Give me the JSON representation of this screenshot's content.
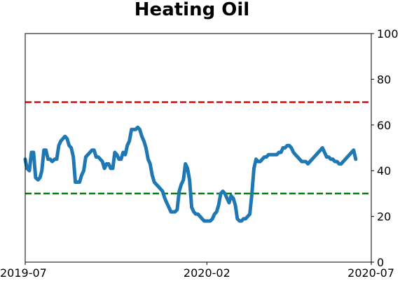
{
  "chart_data": {
    "type": "line",
    "title": "Heating Oil",
    "xlabel": "",
    "ylabel": "",
    "x_ticks": [
      "2019-07",
      "2020-02",
      "2020-07"
    ],
    "y_ticks": [
      "0",
      "20",
      "40",
      "60",
      "80",
      "100"
    ],
    "ylim": [
      0,
      100
    ],
    "y_axis_side": "right",
    "grid": false,
    "reference_lines": [
      {
        "y": 70,
        "color": "#e00000",
        "style": "dashed"
      },
      {
        "y": 30,
        "color": "#008000",
        "style": "dashed"
      }
    ],
    "series": [
      {
        "color": "#1f77b4",
        "x": [
          0.0,
          0.005,
          0.012,
          0.018,
          0.024,
          0.03,
          0.037,
          0.043,
          0.048,
          0.054,
          0.06,
          0.066,
          0.072,
          0.078,
          0.085,
          0.091,
          0.097,
          0.103,
          0.109,
          0.115,
          0.121,
          0.127,
          0.133,
          0.139,
          0.145,
          0.151,
          0.157,
          0.163,
          0.169,
          0.175,
          0.181,
          0.187,
          0.193,
          0.199,
          0.205,
          0.211,
          0.217,
          0.223,
          0.229,
          0.235,
          0.241,
          0.247,
          0.253,
          0.259,
          0.265,
          0.271,
          0.277,
          0.283,
          0.289,
          0.295,
          0.301,
          0.307,
          0.313,
          0.319,
          0.325,
          0.331,
          0.337,
          0.343,
          0.349,
          0.355,
          0.361,
          0.367,
          0.373,
          0.379,
          0.385,
          0.391,
          0.397,
          0.403,
          0.409,
          0.415,
          0.421,
          0.427,
          0.433,
          0.439,
          0.445,
          0.451,
          0.457,
          0.463,
          0.469,
          0.475,
          0.481,
          0.487,
          0.493,
          0.499,
          0.505,
          0.511,
          0.517,
          0.523,
          0.529,
          0.535,
          0.541,
          0.547,
          0.553,
          0.559,
          0.565,
          0.571,
          0.577,
          0.583,
          0.589,
          0.595,
          0.601,
          0.607,
          0.613,
          0.619,
          0.625,
          0.631,
          0.637,
          0.643,
          0.649,
          0.655,
          0.661,
          0.667,
          0.673,
          0.679,
          0.685,
          0.691,
          0.697,
          0.703,
          0.709,
          0.715,
          0.721,
          0.727,
          0.733,
          0.739,
          0.745,
          0.751,
          0.757,
          0.763,
          0.769,
          0.775,
          0.781,
          0.787,
          0.793,
          0.799,
          0.805,
          0.811,
          0.817,
          0.823,
          0.829,
          0.835,
          0.841,
          0.847,
          0.853,
          0.859,
          0.865,
          0.871,
          0.877,
          0.883,
          0.889,
          0.895,
          0.901,
          0.907,
          0.913,
          0.919,
          0.925,
          0.931,
          0.937,
          0.943,
          0.949,
          0.955
        ],
        "y": [
          45,
          41,
          40,
          48,
          48,
          37,
          36,
          37,
          40,
          49,
          49,
          45,
          45,
          44,
          45,
          45,
          51,
          53,
          54,
          55,
          54,
          51,
          50,
          46,
          35,
          35,
          35,
          38,
          40,
          46,
          47,
          48,
          49,
          49,
          46,
          46,
          45,
          44,
          41,
          43,
          43,
          41,
          41,
          48,
          47,
          45,
          45,
          48,
          47,
          51,
          53,
          58,
          58,
          58,
          59,
          58,
          55,
          53,
          50,
          45,
          43,
          38,
          35,
          34,
          33,
          32,
          31,
          28,
          26,
          24,
          22,
          22,
          22,
          23,
          31,
          34,
          36,
          43,
          41,
          36,
          24,
          22,
          21,
          21,
          20,
          19,
          18,
          18,
          18,
          18,
          19,
          21,
          22,
          25,
          30,
          31,
          30,
          28,
          26,
          29,
          28,
          25,
          19,
          18,
          18,
          19,
          19,
          20,
          21,
          30,
          41,
          45,
          44,
          44,
          45,
          46,
          46,
          47,
          47,
          47,
          47,
          47,
          48,
          48,
          50,
          50,
          51,
          51,
          50,
          48,
          47,
          46,
          45,
          44,
          44,
          44,
          43,
          44,
          45,
          46,
          47,
          48,
          49,
          50,
          48,
          46,
          46,
          45,
          45,
          44,
          44,
          43,
          43,
          44,
          45,
          46,
          47,
          48,
          49,
          45
        ]
      }
    ]
  }
}
